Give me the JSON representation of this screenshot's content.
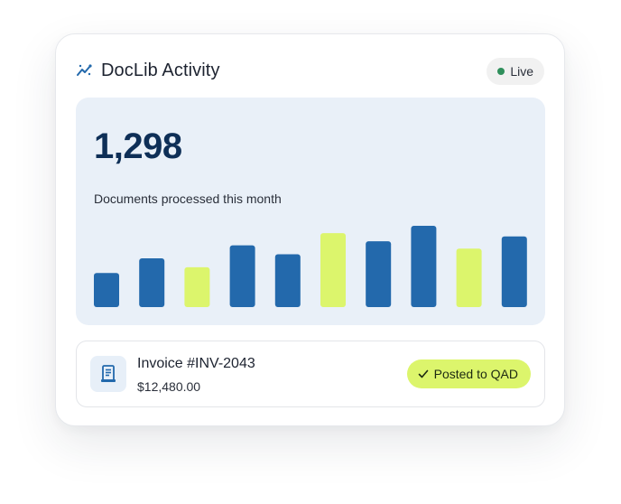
{
  "header": {
    "title": "DocLib Activity",
    "title_icon": "sparkline-icon",
    "status_label": "Live",
    "status_color": "#2f8f5b"
  },
  "stats": {
    "value": "1,298",
    "label": "Documents processed this month"
  },
  "chart_data": {
    "type": "bar",
    "title": "",
    "xlabel": "",
    "ylabel": "",
    "ylim": [
      0,
      100
    ],
    "values": [
      42,
      60,
      49,
      76,
      65,
      91,
      81,
      100,
      72,
      87
    ],
    "colors": [
      "#2369ac",
      "#2369ac",
      "#dcf56c",
      "#2369ac",
      "#2369ac",
      "#dcf56c",
      "#2369ac",
      "#2369ac",
      "#dcf56c",
      "#2369ac"
    ]
  },
  "invoice": {
    "icon": "document-icon",
    "title": "Invoice #INV-2043",
    "amount": "$12,480.00",
    "status_label": "Posted to QAD",
    "status_icon": "check-icon"
  },
  "colors": {
    "primary": "#2369ac",
    "accent": "#dcf56c",
    "panel": "#e9f0f8",
    "heading": "#0e2f57"
  }
}
